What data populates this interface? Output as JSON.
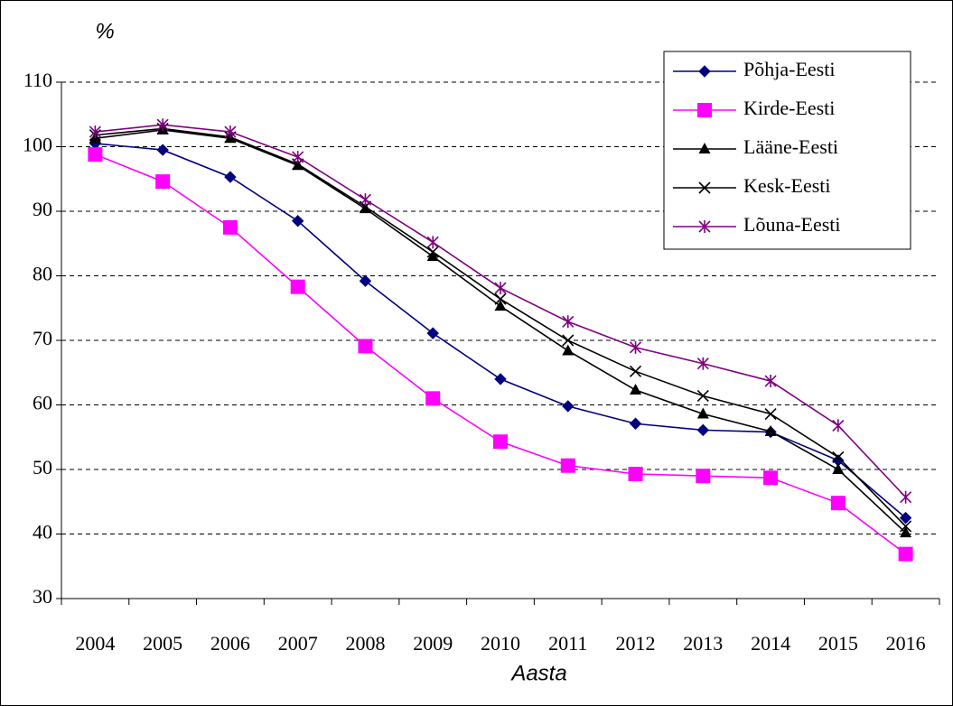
{
  "chart_data": {
    "type": "line",
    "y_label": "%",
    "x_label": "Aasta",
    "categories": [
      "2004",
      "2005",
      "2006",
      "2007",
      "2008",
      "2009",
      "2010",
      "2011",
      "2012",
      "2013",
      "2014",
      "2015",
      "2016"
    ],
    "series": [
      {
        "name": "Põhja-Eesti",
        "color": "#000080",
        "marker": "diamond",
        "values": [
          100.5,
          99.5,
          95.3,
          88.5,
          79.2,
          71.1,
          64.0,
          59.8,
          57.1,
          56.1,
          55.8,
          51.4,
          42.5
        ]
      },
      {
        "name": "Kirde-Eesti",
        "color": "#ff00ff",
        "marker": "square",
        "values": [
          98.8,
          94.6,
          87.5,
          78.3,
          69.1,
          61.0,
          54.3,
          50.6,
          49.3,
          49.0,
          48.7,
          44.8,
          36.9
        ]
      },
      {
        "name": "Lääne-Eesti",
        "color": "#000000",
        "marker": "triangle",
        "values": [
          101.3,
          102.6,
          101.3,
          97.1,
          90.4,
          83.0,
          75.3,
          68.4,
          62.3,
          58.6,
          55.9,
          50.0,
          40.2
        ]
      },
      {
        "name": "Kesk-Eesti",
        "color": "#000000",
        "marker": "x",
        "values": [
          101.8,
          102.8,
          101.5,
          97.3,
          90.7,
          83.7,
          76.4,
          70.0,
          65.2,
          61.4,
          58.6,
          51.9,
          41.2
        ]
      },
      {
        "name": "Lõuna-Eesti",
        "color": "#800080",
        "marker": "star",
        "values": [
          102.3,
          103.4,
          102.3,
          98.4,
          91.8,
          85.2,
          78.1,
          72.9,
          68.9,
          66.4,
          63.7,
          56.8,
          45.7
        ]
      }
    ],
    "ylim": [
      30,
      110
    ],
    "yticks": [
      30,
      40,
      50,
      60,
      70,
      80,
      90,
      100,
      110
    ],
    "grid": true,
    "legend": "top-right"
  }
}
